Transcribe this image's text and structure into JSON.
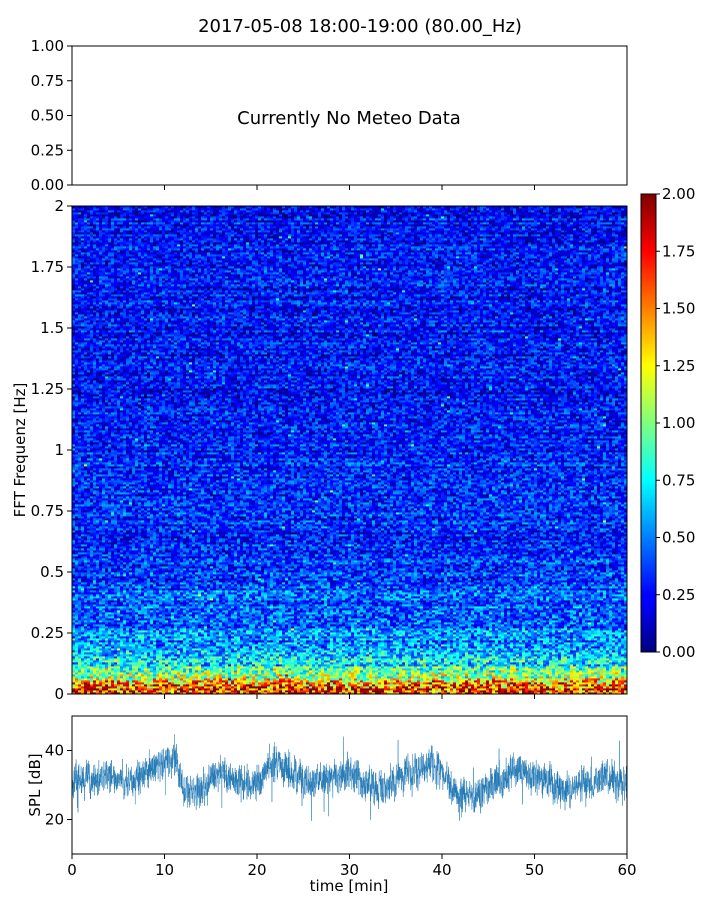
{
  "figure_title": "2017-05-08 18:00-19:00 (80.00_Hz)",
  "chart_data": [
    {
      "type": "line",
      "panel": "meteo",
      "annotation": "Currently No Meteo Data",
      "ylim": [
        0,
        1
      ],
      "y_ticks": [
        "0.00",
        "0.25",
        "0.50",
        "0.75",
        "1.00"
      ],
      "xlim": [
        0,
        60
      ],
      "series": []
    },
    {
      "type": "heatmap",
      "panel": "spectrogram",
      "ylabel": "FFT Frequenz [Hz]",
      "ylim": [
        0,
        2
      ],
      "y_ticks": [
        "0",
        "0.25",
        "0.5",
        "0.75",
        "1",
        "1.25",
        "1.5",
        "1.75",
        "2"
      ],
      "xlim": [
        0,
        60
      ],
      "colormap": "jet",
      "clim": [
        0,
        2
      ],
      "colorbar_ticks": [
        "0.00",
        "0.25",
        "0.50",
        "0.75",
        "1.00",
        "1.25",
        "1.50",
        "1.75",
        "2.00"
      ],
      "intensity_profile": {
        "freq_hz": [
          0,
          0.02,
          0.05,
          0.08,
          0.12,
          0.2,
          0.3,
          0.5,
          0.75,
          1.0,
          1.5,
          2.0
        ],
        "mean_value": [
          1.85,
          1.7,
          1.35,
          1.0,
          0.75,
          0.55,
          0.45,
          0.36,
          0.3,
          0.28,
          0.26,
          0.25
        ]
      }
    },
    {
      "type": "line",
      "panel": "spl",
      "ylabel": "SPL [dB]",
      "xlabel": "time [min]",
      "xlim": [
        0,
        60
      ],
      "ylim": [
        10,
        50
      ],
      "y_ticks": [
        "20",
        "40"
      ],
      "x_ticks": [
        "0",
        "10",
        "20",
        "30",
        "40",
        "50",
        "60"
      ],
      "line_color": "#1f77b4",
      "series": [
        {
          "x": [
            0,
            2,
            4,
            6,
            8,
            10,
            11,
            12,
            14,
            16,
            18,
            20,
            21,
            22,
            24,
            26,
            28,
            30,
            32,
            34,
            36,
            38,
            39,
            40,
            41,
            42,
            44,
            46,
            48,
            50,
            52,
            54,
            56,
            58,
            60
          ],
          "values": [
            32,
            31,
            33,
            30,
            34,
            37,
            38,
            29,
            28,
            34,
            30,
            31,
            34,
            37,
            33,
            31,
            32,
            34,
            30,
            29,
            33,
            35,
            36,
            33,
            30,
            27,
            28,
            31,
            34,
            33,
            30,
            29,
            31,
            33,
            30
          ]
        }
      ]
    }
  ],
  "colors": {
    "spl_line": "#1f77b4",
    "axes_frame": "#000000"
  }
}
